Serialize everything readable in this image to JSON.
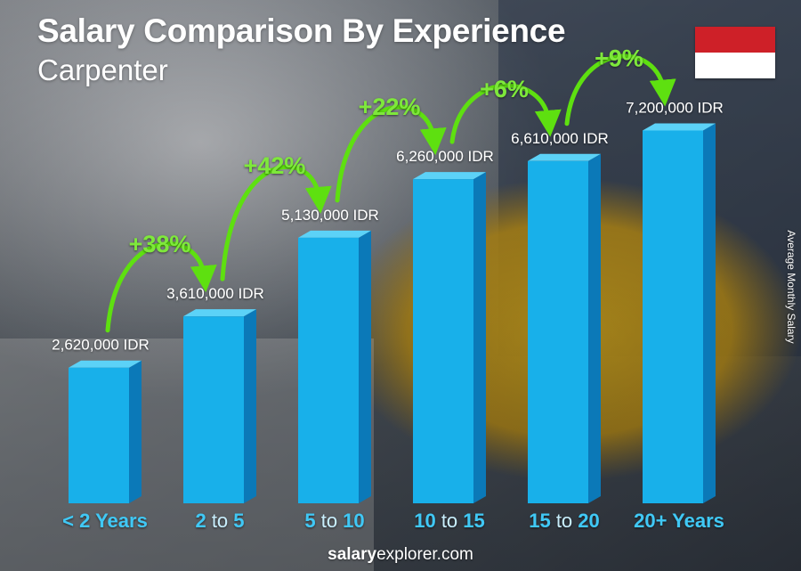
{
  "header": {
    "title": "Salary Comparison By Experience",
    "subtitle": "Carpenter"
  },
  "colors": {
    "bar_front": "#18b0ea",
    "bar_side": "#0b79b8",
    "bar_top": "#5cd2f7",
    "arrow": "#5ee010",
    "pct_text": "#7ee83a",
    "label": "#ffffff",
    "flag_top": "#ce2028",
    "flag_bottom": "#ffffff"
  },
  "flag_icon": "indonesia-flag-icon",
  "ylabel": "Average Monthly Salary",
  "footer": {
    "brand_bold": "salary",
    "brand_regular": "explorer.com"
  },
  "chart_data": {
    "type": "bar",
    "title": "Salary Comparison By Experience",
    "subtitle": "Carpenter",
    "ylabel": "Average Monthly Salary",
    "currency": "IDR",
    "categories": [
      {
        "parts": [
          "< 2 Years"
        ]
      },
      {
        "parts": [
          "2",
          " to ",
          "5"
        ]
      },
      {
        "parts": [
          "5",
          " to ",
          "10"
        ]
      },
      {
        "parts": [
          "10",
          " to ",
          "15"
        ]
      },
      {
        "parts": [
          "15",
          " to ",
          "20"
        ]
      },
      {
        "parts": [
          "20+ Years"
        ]
      }
    ],
    "values": [
      2620000,
      3610000,
      5130000,
      6260000,
      6610000,
      7200000
    ],
    "value_labels": [
      "2,620,000 IDR",
      "3,610,000 IDR",
      "5,130,000 IDR",
      "6,260,000 IDR",
      "6,610,000 IDR",
      "7,200,000 IDR"
    ],
    "increases": [
      "+38%",
      "+42%",
      "+22%",
      "+6%",
      "+9%"
    ],
    "ylim": [
      0,
      8000000
    ]
  }
}
